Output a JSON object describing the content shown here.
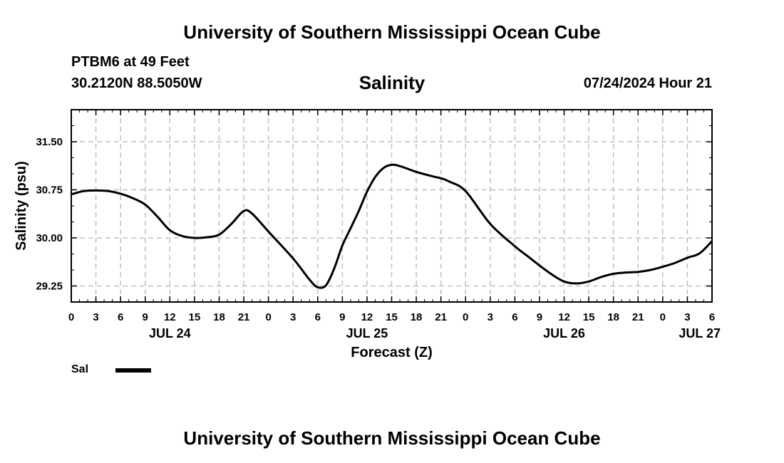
{
  "header": {
    "top_title": "University of Southern Mississippi Ocean Cube",
    "station": "PTBM6 at 49 Feet",
    "coords": "30.2120N  88.5050W",
    "run_time": "07/24/2024 Hour 21",
    "bottom_title": "University of Southern Mississippi Ocean Cube"
  },
  "colors": {
    "line": "#000000",
    "grid": "#c0c0c0",
    "background": "#ffffff"
  },
  "chart_data": {
    "type": "line",
    "title": "Salinity",
    "xlabel": "Forecast (Z)",
    "ylabel": "Salinity (psu)",
    "xlim": [
      0,
      78
    ],
    "ylim": [
      29.0,
      32.0
    ],
    "y_ticks": [
      29.25,
      30.0,
      30.75,
      31.5
    ],
    "y_tick_labels": [
      "29.25",
      "30.00",
      "30.75",
      "31.50"
    ],
    "x_ticks": [
      0,
      3,
      6,
      9,
      12,
      15,
      18,
      21,
      24,
      27,
      30,
      33,
      36,
      39,
      42,
      45,
      48,
      51,
      54,
      57,
      60,
      63,
      66,
      69,
      72,
      75,
      78
    ],
    "x_tick_labels": [
      "0",
      "3",
      "6",
      "9",
      "12",
      "15",
      "18",
      "21",
      "0",
      "3",
      "6",
      "9",
      "12",
      "15",
      "18",
      "21",
      "0",
      "3",
      "6",
      "9",
      "12",
      "15",
      "18",
      "21",
      "0",
      "3",
      "6"
    ],
    "date_labels": [
      {
        "x": 12,
        "label": "JUL 24"
      },
      {
        "x": 36,
        "label": "JUL 25"
      },
      {
        "x": 60,
        "label": "JUL 26"
      },
      {
        "x": 76.5,
        "label": "JUL 27"
      }
    ],
    "grid": true,
    "legend_placement": "bottom-left",
    "series": [
      {
        "name": "Sal",
        "x": [
          0,
          1.5,
          3,
          4.5,
          6,
          7.5,
          9,
          10.5,
          12,
          13.5,
          15,
          16.5,
          18,
          19.5,
          21,
          22,
          24,
          27,
          29,
          30,
          31,
          32,
          33,
          34,
          35,
          36,
          37,
          38,
          39,
          40,
          42,
          44,
          45,
          46,
          48,
          51,
          54,
          55.5,
          57,
          58.5,
          60,
          61.5,
          63,
          64.5,
          66,
          67.5,
          69,
          70.5,
          72,
          73.5,
          75,
          76.5,
          78
        ],
        "y": [
          30.68,
          30.73,
          30.74,
          30.73,
          30.69,
          30.62,
          30.52,
          30.33,
          30.12,
          30.03,
          30.0,
          30.01,
          30.05,
          30.22,
          30.42,
          30.38,
          30.1,
          29.68,
          29.35,
          29.23,
          29.26,
          29.52,
          29.88,
          30.15,
          30.42,
          30.72,
          30.95,
          31.09,
          31.14,
          31.12,
          31.03,
          30.96,
          30.93,
          30.88,
          30.73,
          30.22,
          29.87,
          29.72,
          29.57,
          29.43,
          29.32,
          29.29,
          29.32,
          29.39,
          29.44,
          29.46,
          29.47,
          29.5,
          29.55,
          29.61,
          29.69,
          29.76,
          29.95
        ]
      }
    ]
  }
}
